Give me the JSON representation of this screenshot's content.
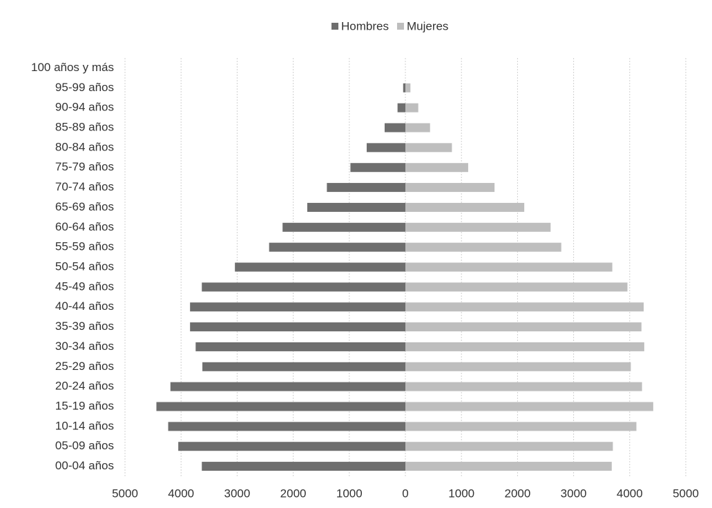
{
  "chart_data": {
    "type": "bar",
    "orientation": "horizontal",
    "stacked": true,
    "categories": [
      "00-04 años",
      "05-09 años",
      "10-14 años",
      "15-19 años",
      "20-24 años",
      "25-29 años",
      "30-34 años",
      "35-39 años",
      "40-44 años",
      "45-49 años",
      "50-54 años",
      "55-59 años",
      "60-64 años",
      "65-69 años",
      "70-74 años",
      "75-79 años",
      "80-84 años",
      "85-89 años",
      "90-94 años",
      "95-99 años",
      "100 años y más"
    ],
    "series": [
      {
        "name": "Hombres",
        "color": "#6e6e6e",
        "values": [
          -3630,
          -4050,
          -4230,
          -4440,
          -4190,
          -3620,
          -3740,
          -3840,
          -3840,
          -3630,
          -3040,
          -2430,
          -2190,
          -1750,
          -1400,
          -980,
          -690,
          -370,
          -140,
          -40,
          0
        ]
      },
      {
        "name": "Mujeres",
        "color": "#bebebe",
        "values": [
          3680,
          3700,
          4120,
          4420,
          4220,
          4020,
          4260,
          4210,
          4250,
          3960,
          3690,
          2780,
          2590,
          2120,
          1590,
          1120,
          830,
          440,
          230,
          90,
          0
        ]
      }
    ],
    "xlim": [
      -5000,
      5000
    ],
    "xticks": [
      {
        "value": -5000,
        "label": "5000"
      },
      {
        "value": -4000,
        "label": "4000"
      },
      {
        "value": -3000,
        "label": "3000"
      },
      {
        "value": -2000,
        "label": "2000"
      },
      {
        "value": -1000,
        "label": "1000"
      },
      0,
      1000,
      2000,
      3000,
      4000,
      5000
    ],
    "grid": true,
    "legend": "top"
  }
}
